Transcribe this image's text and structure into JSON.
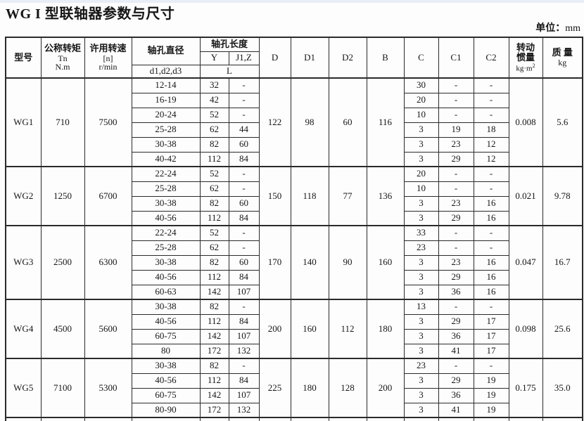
{
  "page": {
    "title": "WG I 型联轴器参数与尺寸",
    "unit_cn": "单位：",
    "unit_val": "mm"
  },
  "table": {
    "headers": {
      "model": "型号",
      "torque_cn": "公称转矩",
      "torque_sym": "Tn",
      "torque_unit": "N.m",
      "speed_cn": "许用转速",
      "speed_sym": "[n]",
      "speed_unit": "r/min",
      "bore_dia_cn": "轴孔直径",
      "bore_dia_sub": "d1,d2,d3",
      "bore_len_cn": "轴孔长度",
      "col_y": "Y",
      "col_jz": "J1,Z",
      "col_l": "L",
      "col_d": "D",
      "col_d1": "D1",
      "col_d2": "D2",
      "col_b": "B",
      "col_c": "C",
      "col_c1": "C1",
      "col_c2": "C2",
      "inertia_cn1": "转动",
      "inertia_cn2": "惯量",
      "inertia_unit": "kg·m",
      "inertia_sup": "2",
      "mass_cn": "质 量",
      "mass_unit": "kg"
    },
    "models": [
      {
        "name": "WG1",
        "torque": "710",
        "speed": "7500",
        "d": "122",
        "d1": "98",
        "d2": "60",
        "b": "116",
        "inertia": "0.008",
        "mass": "5.6",
        "rows": [
          {
            "bore": "12-14",
            "y": "32",
            "jz": "-",
            "c": "30",
            "c1": "-",
            "c2": "-"
          },
          {
            "bore": "16-19",
            "y": "42",
            "jz": "-",
            "c": "20",
            "c1": "-",
            "c2": "-"
          },
          {
            "bore": "20-24",
            "y": "52",
            "jz": "-",
            "c": "10",
            "c1": "-",
            "c2": "-"
          },
          {
            "bore": "25-28",
            "y": "62",
            "jz": "44",
            "c": "3",
            "c1": "19",
            "c2": "18"
          },
          {
            "bore": "30-38",
            "y": "82",
            "jz": "60",
            "c": "3",
            "c1": "23",
            "c2": "12"
          },
          {
            "bore": "40-42",
            "y": "112",
            "jz": "84",
            "c": "3",
            "c1": "29",
            "c2": "12"
          }
        ]
      },
      {
        "name": "WG2",
        "torque": "1250",
        "speed": "6700",
        "d": "150",
        "d1": "118",
        "d2": "77",
        "b": "136",
        "inertia": "0.021",
        "mass": "9.78",
        "rows": [
          {
            "bore": "22-24",
            "y": "52",
            "jz": "-",
            "c": "20",
            "c1": "-",
            "c2": "-"
          },
          {
            "bore": "25-28",
            "y": "62",
            "jz": "-",
            "c": "10",
            "c1": "-",
            "c2": "-"
          },
          {
            "bore": "30-38",
            "y": "82",
            "jz": "60",
            "c": "3",
            "c1": "23",
            "c2": "16"
          },
          {
            "bore": "40-56",
            "y": "112",
            "jz": "84",
            "c": "3",
            "c1": "29",
            "c2": "16"
          }
        ]
      },
      {
        "name": "WG3",
        "torque": "2500",
        "speed": "6300",
        "d": "170",
        "d1": "140",
        "d2": "90",
        "b": "160",
        "inertia": "0.047",
        "mass": "16.7",
        "rows": [
          {
            "bore": "22-24",
            "y": "52",
            "jz": "-",
            "c": "33",
            "c1": "-",
            "c2": "-"
          },
          {
            "bore": "25-28",
            "y": "62",
            "jz": "-",
            "c": "23",
            "c1": "-",
            "c2": "-"
          },
          {
            "bore": "30-38",
            "y": "82",
            "jz": "60",
            "c": "3",
            "c1": "23",
            "c2": "16"
          },
          {
            "bore": "40-56",
            "y": "112",
            "jz": "84",
            "c": "3",
            "c1": "29",
            "c2": "16"
          },
          {
            "bore": "60-63",
            "y": "142",
            "jz": "107",
            "c": "3",
            "c1": "36",
            "c2": "16"
          }
        ]
      },
      {
        "name": "WG4",
        "torque": "4500",
        "speed": "5600",
        "d": "200",
        "d1": "160",
        "d2": "112",
        "b": "180",
        "inertia": "0.098",
        "mass": "25.6",
        "rows": [
          {
            "bore": "30-38",
            "y": "82",
            "jz": "-",
            "c": "13",
            "c1": "-",
            "c2": "-"
          },
          {
            "bore": "40-56",
            "y": "112",
            "jz": "84",
            "c": "3",
            "c1": "29",
            "c2": "17"
          },
          {
            "bore": "60-75",
            "y": "142",
            "jz": "107",
            "c": "3",
            "c1": "36",
            "c2": "17"
          },
          {
            "bore": "80",
            "y": "172",
            "jz": "132",
            "c": "3",
            "c1": "41",
            "c2": "17"
          }
        ]
      },
      {
        "name": "WG5",
        "torque": "7100",
        "speed": "5300",
        "d": "225",
        "d1": "180",
        "d2": "128",
        "b": "200",
        "inertia": "0.175",
        "mass": "35.0",
        "rows": [
          {
            "bore": "30-38",
            "y": "82",
            "jz": "-",
            "c": "23",
            "c1": "-",
            "c2": "-"
          },
          {
            "bore": "40-56",
            "y": "112",
            "jz": "84",
            "c": "3",
            "c1": "29",
            "c2": "19"
          },
          {
            "bore": "60-75",
            "y": "142",
            "jz": "107",
            "c": "3",
            "c1": "36",
            "c2": "19"
          },
          {
            "bore": "80-90",
            "y": "172",
            "jz": "132",
            "c": "3",
            "c1": "41",
            "c2": "19"
          }
        ]
      }
    ]
  }
}
